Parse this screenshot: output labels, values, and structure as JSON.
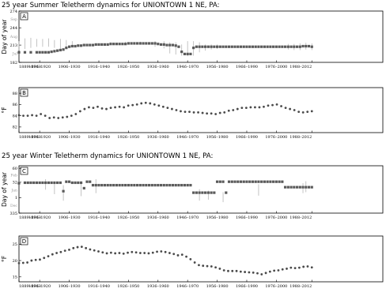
{
  "titles": {
    "summer": "25 year Summer Teletherm dynamics for UNIONTOWN 1 NE, PA:",
    "winter": "25 year Winter Teletherm dynamics for UNIONTOWN 1 NE, PA:"
  },
  "x_tick_labels": [
    "1889–1913",
    "1896–1920",
    "1906–1930",
    "1916–1940",
    "1926–1950",
    "1936–1960",
    "1946–1970",
    "1956–1980",
    "1966–1990",
    "1976–2000",
    "1988–2012"
  ],
  "chart_data": [
    {
      "panel": "A",
      "type": "scatter",
      "ylabel": "Day of year",
      "ylim": [
        182,
        274
      ],
      "yticks": [
        274,
        244,
        213,
        182
      ],
      "month_labels": [
        "Sep",
        "Aug",
        "Jul",
        "Jun"
      ],
      "month_positions": [
        259,
        228,
        198,
        167
      ],
      "x_start_years": [
        1889,
        2012
      ],
      "points": [
        {
          "start": 1889,
          "y": 200,
          "lo": 200,
          "hi": 200
        },
        {
          "start": 1893,
          "y": 200,
          "lo": 200,
          "hi": 200
        },
        {
          "start": 1895,
          "y": 200,
          "lo": 200,
          "hi": 200
        },
        {
          "start": 1896,
          "y": 200,
          "lo": 200,
          "hi": 200
        },
        {
          "start": 1897,
          "y": 200,
          "lo": 200,
          "hi": 200
        },
        {
          "start": 1899,
          "y": 200,
          "lo": 200,
          "hi": 200
        },
        {
          "start": 1900,
          "y": 202,
          "lo": 202,
          "hi": 202
        },
        {
          "start": 1902,
          "y": 205,
          "lo": 205,
          "hi": 205
        },
        {
          "start": 1904,
          "y": 208,
          "lo": 208,
          "hi": 208
        },
        {
          "start": 1906,
          "y": 210,
          "lo": 210,
          "hi": 210
        },
        {
          "start": 1908,
          "y": 211,
          "lo": 211,
          "hi": 211
        },
        {
          "start": 1910,
          "y": 212,
          "lo": 212,
          "hi": 212
        },
        {
          "start": 1912,
          "y": 212,
          "lo": 212,
          "hi": 212
        },
        {
          "start": 1914,
          "y": 213,
          "lo": 213,
          "hi": 213
        },
        {
          "start": 1916,
          "y": 213,
          "lo": 213,
          "hi": 213
        },
        {
          "start": 1918,
          "y": 213,
          "lo": 213,
          "hi": 213
        },
        {
          "start": 1920,
          "y": 214,
          "lo": 214,
          "hi": 214
        },
        {
          "start": 1922,
          "y": 214,
          "lo": 214,
          "hi": 214
        },
        {
          "start": 1924,
          "y": 214,
          "lo": 214,
          "hi": 214
        },
        {
          "start": 1926,
          "y": 215,
          "lo": 215,
          "hi": 215
        },
        {
          "start": 1928,
          "y": 215,
          "lo": 215,
          "hi": 215
        },
        {
          "start": 1930,
          "y": 216,
          "lo": 216,
          "hi": 216
        },
        {
          "start": 1932,
          "y": 216,
          "lo": 216,
          "hi": 216
        },
        {
          "start": 1934,
          "y": 216,
          "lo": 216,
          "hi": 216
        },
        {
          "start": 1936,
          "y": 216,
          "lo": 216,
          "hi": 216
        },
        {
          "start": 1938,
          "y": 215,
          "lo": 215,
          "hi": 215
        },
        {
          "start": 1940,
          "y": 214,
          "lo": 214,
          "hi": 214
        },
        {
          "start": 1942,
          "y": 213,
          "lo": 213,
          "hi": 213
        },
        {
          "start": 1944,
          "y": 213,
          "lo": 213,
          "hi": 213
        },
        {
          "start": 1946,
          "y": 213,
          "lo": 213,
          "hi": 213
        },
        {
          "start": 1948,
          "y": 213,
          "lo": 213,
          "hi": 213
        },
        {
          "start": 1950,
          "y": 213,
          "lo": 213,
          "hi": 213
        },
        {
          "start": 1952,
          "y": 212,
          "lo": 212,
          "hi": 212
        },
        {
          "start": 1954,
          "y": 212,
          "lo": 212,
          "hi": 212
        },
        {
          "start": 1956,
          "y": 212,
          "lo": 212,
          "hi": 212
        },
        {
          "start": 1958,
          "y": 212,
          "lo": 212,
          "hi": 212
        },
        {
          "start": 1960,
          "y": 211,
          "lo": 211,
          "hi": 211
        },
        {
          "start": 1962,
          "y": 211,
          "lo": 211,
          "hi": 211
        },
        {
          "start": 1964,
          "y": 211,
          "lo": 211,
          "hi": 211
        },
        {
          "start": 1966,
          "y": 211,
          "lo": 211,
          "hi": 211
        },
        {
          "start": 1968,
          "y": 211,
          "lo": 211,
          "hi": 211
        },
        {
          "start": 1970,
          "y": 211,
          "lo": 211,
          "hi": 211
        },
        {
          "start": 1972,
          "y": 211,
          "lo": 211,
          "hi": 211
        },
        {
          "start": 1974,
          "y": 211,
          "lo": 211,
          "hi": 211
        },
        {
          "start": 1976,
          "y": 211,
          "lo": 211,
          "hi": 211
        },
        {
          "start": 1978,
          "y": 211,
          "lo": 211,
          "hi": 211
        },
        {
          "start": 1980,
          "y": 211,
          "lo": 211,
          "hi": 211
        },
        {
          "start": 1982,
          "y": 211,
          "lo": 211,
          "hi": 211
        },
        {
          "start": 1984,
          "y": 211,
          "lo": 211,
          "hi": 211
        },
        {
          "start": 1986,
          "y": 212,
          "lo": 212,
          "hi": 212
        },
        {
          "start": 1988,
          "y": 211,
          "lo": 211,
          "hi": 211
        }
      ]
    },
    {
      "panel": "B",
      "type": "scatter",
      "ylabel": "°F",
      "ylim": [
        81,
        89
      ],
      "yticks": [
        88,
        86,
        84,
        82
      ],
      "x_start_years": [
        1889,
        2012
      ],
      "points": []
    },
    {
      "panel": "C",
      "type": "scatter",
      "ylabel": "Day of year",
      "ylim": [
        330,
        65
      ],
      "yticks": [
        60,
        32,
        1,
        335
      ],
      "month_labels": [
        "Feb",
        "Jan",
        "Dec"
      ],
      "month_positions": [
        45,
        15,
        350
      ],
      "x_start_years": [
        1889,
        2012
      ],
      "points": []
    },
    {
      "panel": "D",
      "type": "scatter",
      "ylabel": "°F",
      "ylim": [
        13.5,
        27.5
      ],
      "yticks": [
        25,
        20,
        15
      ],
      "x_start_years": [
        1889,
        2012
      ],
      "points": []
    }
  ]
}
